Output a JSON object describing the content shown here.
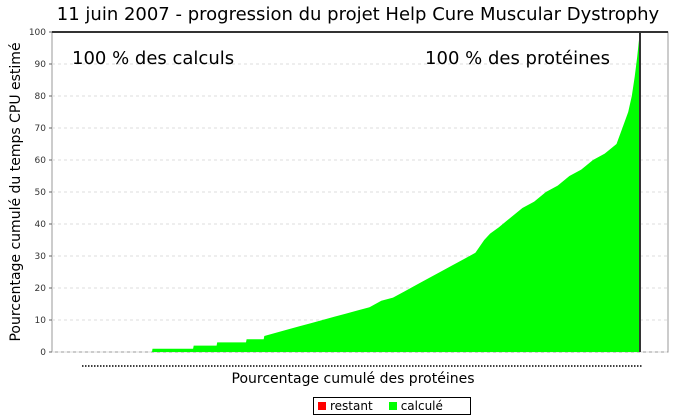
{
  "chart_data": {
    "type": "area",
    "title_date": "11 juin 2007",
    "title_separator": "-",
    "title_main": "progression du projet Help Cure Muscular Dystrophy",
    "xlabel": "Pourcentage cumulé des protéines",
    "ylabel": "Pourcentage cumulé du temps CPU estimé",
    "ylim": [
      0,
      100
    ],
    "xlim": [
      0,
      100
    ],
    "yticks": [
      "0",
      "10",
      "20",
      "30",
      "40",
      "50",
      "60",
      "70",
      "80",
      "90",
      "100"
    ],
    "annotations": {
      "calcul": "100 % des calculs",
      "proteines": "100 % des protéines"
    },
    "series": [
      {
        "name": "calculé",
        "color": "#00ff00",
        "x": [
          0,
          17,
          17.1,
          24,
          24.1,
          28,
          28.1,
          33,
          33.1,
          36,
          36.1,
          40,
          42,
          44,
          46,
          48,
          50,
          52,
          54,
          56,
          58,
          60,
          62,
          64,
          66,
          68,
          70,
          72,
          73.5,
          74.5,
          76,
          78,
          80,
          82,
          84,
          86,
          88,
          90,
          92,
          94,
          96,
          97,
          98,
          98.6,
          99.1,
          99.5,
          99.8,
          100
        ],
        "y": [
          0,
          0,
          1,
          1,
          2,
          2,
          3,
          3,
          4,
          4,
          5,
          7,
          8,
          9,
          10,
          11,
          12,
          13,
          14,
          16,
          17,
          19,
          21,
          23,
          25,
          27,
          29,
          31,
          35,
          37,
          39,
          42,
          45,
          47,
          50,
          52,
          55,
          57,
          60,
          62,
          65,
          70,
          75,
          80,
          86,
          92,
          97,
          100
        ]
      },
      {
        "name": "restant",
        "color": "#ff0000",
        "x": [],
        "y": []
      }
    ],
    "grid": "horizontal",
    "legend_placement": "bottom-center"
  }
}
